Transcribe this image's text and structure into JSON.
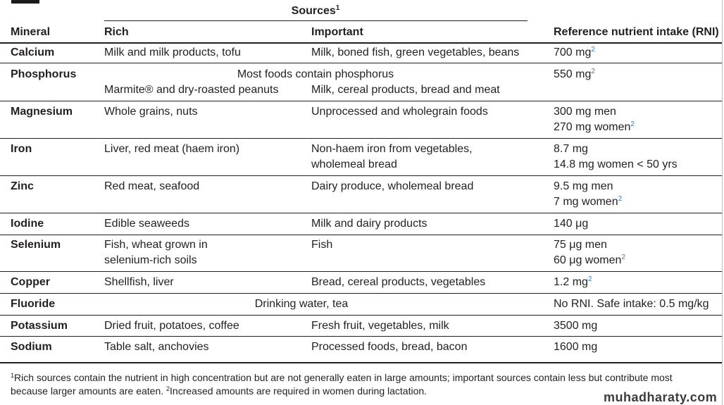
{
  "header": {
    "sources": "Sources",
    "sources_sup": "1",
    "mineral": "Mineral",
    "rich": "Rich",
    "important": "Important",
    "rni": "Reference nutrient intake (RNI)"
  },
  "rows": [
    {
      "mineral": "Calcium",
      "rich": "Milk and milk products, tofu",
      "important": "Milk, boned fish, green vegetables, beans",
      "rni1": "700 mg",
      "rni1_sup": "2"
    },
    {
      "mineral": "Phosphorus",
      "span": "Most foods contain phosphorus",
      "rich": "Marmite® and dry-roasted peanuts",
      "important": "Milk, cereal products, bread and meat",
      "rni1": "550 mg",
      "rni1_sup": "2"
    },
    {
      "mineral": "Magnesium",
      "rich": "Whole grains, nuts",
      "important": "Unprocessed and wholegrain foods",
      "rni1": "300 mg men",
      "rni2": "270 mg women",
      "rni2_sup": "2"
    },
    {
      "mineral": "Iron",
      "rich": "Liver, red meat (haem iron)",
      "important": "Non-haem iron from vegetables,",
      "important2": "wholemeal bread",
      "rni1": "8.7 mg",
      "rni2": "14.8 mg women < 50 yrs"
    },
    {
      "mineral": "Zinc",
      "rich": "Red meat, seafood",
      "important": "Dairy produce, wholemeal bread",
      "rni1": "9.5 mg men",
      "rni2": "7 mg women",
      "rni2_sup": "2"
    },
    {
      "mineral": "Iodine",
      "rich": "Edible seaweeds",
      "important": "Milk and dairy products",
      "rni1": "140 μg"
    },
    {
      "mineral": "Selenium",
      "rich": "Fish, wheat grown in",
      "rich2": "selenium-rich soils",
      "important": "Fish",
      "rni1": "75 μg men",
      "rni2": "60 μg women",
      "rni2_sup": "2"
    },
    {
      "mineral": "Copper",
      "rich": "Shellfish, liver",
      "important": "Bread, cereal products, vegetables",
      "rni1": "1.2 mg",
      "rni1_sup": "2"
    },
    {
      "mineral": "Fluoride",
      "span": "Drinking water, tea",
      "rni1": "No RNI. Safe intake: 0.5 mg/kg"
    },
    {
      "mineral": "Potassium",
      "rich": "Dried fruit, potatoes, coffee",
      "important": "Fresh fruit, vegetables, milk",
      "rni1": "3500 mg"
    },
    {
      "mineral": "Sodium",
      "rich": "Table salt, anchovies",
      "important": "Processed foods, bread, bacon",
      "rni1": "1600 mg"
    }
  ],
  "footnote": {
    "sup1": "1",
    "text1": "Rich sources contain the nutrient in high concentration but are not generally eaten in large amounts; important sources contain less but contribute most because larger amounts are eaten. ",
    "sup2": "2",
    "text2": "Increased amounts are required in women during lactation."
  },
  "watermark": "muhadharaty.com"
}
